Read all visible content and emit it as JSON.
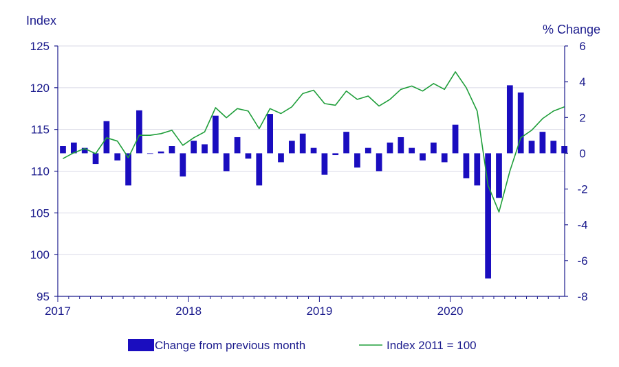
{
  "chart_data": {
    "type": "bar+line",
    "left_axis_title": "Index",
    "right_axis_title": "% Change",
    "left_ticks": [
      "125",
      "120",
      "115",
      "110",
      "105",
      "100",
      "95"
    ],
    "right_ticks": [
      "6",
      "4",
      "2",
      "0",
      "-2",
      "-4",
      "-6",
      "-8"
    ],
    "x_tick_labels": [
      "2017",
      "2018",
      "2019",
      "2020"
    ],
    "left_ylim": [
      95,
      125
    ],
    "right_ylim": [
      -8,
      6
    ],
    "grid": true,
    "legend_position": "bottom",
    "colors": {
      "bars": "#1a0dbf",
      "line": "#1f9e3a",
      "text": "#1a1a8c",
      "grid": "#d9d9e6",
      "axis": "#1a1a8c"
    },
    "x_months": [
      "2017-01",
      "2017-02",
      "2017-03",
      "2017-04",
      "2017-05",
      "2017-06",
      "2017-07",
      "2017-08",
      "2017-09",
      "2017-10",
      "2017-11",
      "2017-12",
      "2018-01",
      "2018-02",
      "2018-03",
      "2018-04",
      "2018-05",
      "2018-06",
      "2018-07",
      "2018-08",
      "2018-09",
      "2018-10",
      "2018-11",
      "2018-12",
      "2019-01",
      "2019-02",
      "2019-03",
      "2019-04",
      "2019-05",
      "2019-06",
      "2019-07",
      "2019-08",
      "2019-09",
      "2019-10",
      "2019-11",
      "2019-12",
      "2020-01",
      "2020-02",
      "2020-03",
      "2020-04",
      "2020-05",
      "2020-06",
      "2020-07",
      "2020-08",
      "2020-09",
      "2020-10",
      "2020-11"
    ],
    "series": [
      {
        "name": "Change from previous month",
        "axis": "right",
        "type": "bar",
        "values": [
          0.4,
          0.6,
          0.3,
          -0.6,
          1.8,
          -0.4,
          -1.8,
          2.4,
          0.0,
          0.1,
          0.4,
          -1.3,
          0.7,
          0.5,
          2.1,
          -1.0,
          0.9,
          -0.3,
          -1.8,
          2.2,
          -0.5,
          0.7,
          1.1,
          0.3,
          -1.2,
          -0.1,
          1.2,
          -0.8,
          0.3,
          -1.0,
          0.6,
          0.9,
          0.3,
          -0.4,
          0.6,
          -0.5,
          1.6,
          -1.4,
          -1.8,
          -7.0,
          -2.5,
          3.8,
          3.4,
          0.7,
          1.2,
          0.7,
          0.4
        ]
      },
      {
        "name": "Index 2011 = 100",
        "axis": "left",
        "type": "line",
        "values": [
          111.5,
          112.2,
          112.7,
          112.1,
          114.0,
          113.6,
          111.6,
          114.3,
          114.3,
          114.5,
          114.9,
          113.1,
          114.0,
          114.7,
          117.6,
          116.4,
          117.5,
          117.2,
          115.1,
          117.5,
          116.9,
          117.7,
          119.3,
          119.7,
          118.1,
          117.9,
          119.6,
          118.6,
          119.0,
          117.8,
          118.6,
          119.8,
          120.2,
          119.6,
          120.5,
          119.8,
          121.9,
          120.0,
          117.2,
          108.3,
          105.1,
          110.0,
          114.0,
          114.9,
          116.3,
          117.2,
          117.7
        ]
      }
    ]
  }
}
